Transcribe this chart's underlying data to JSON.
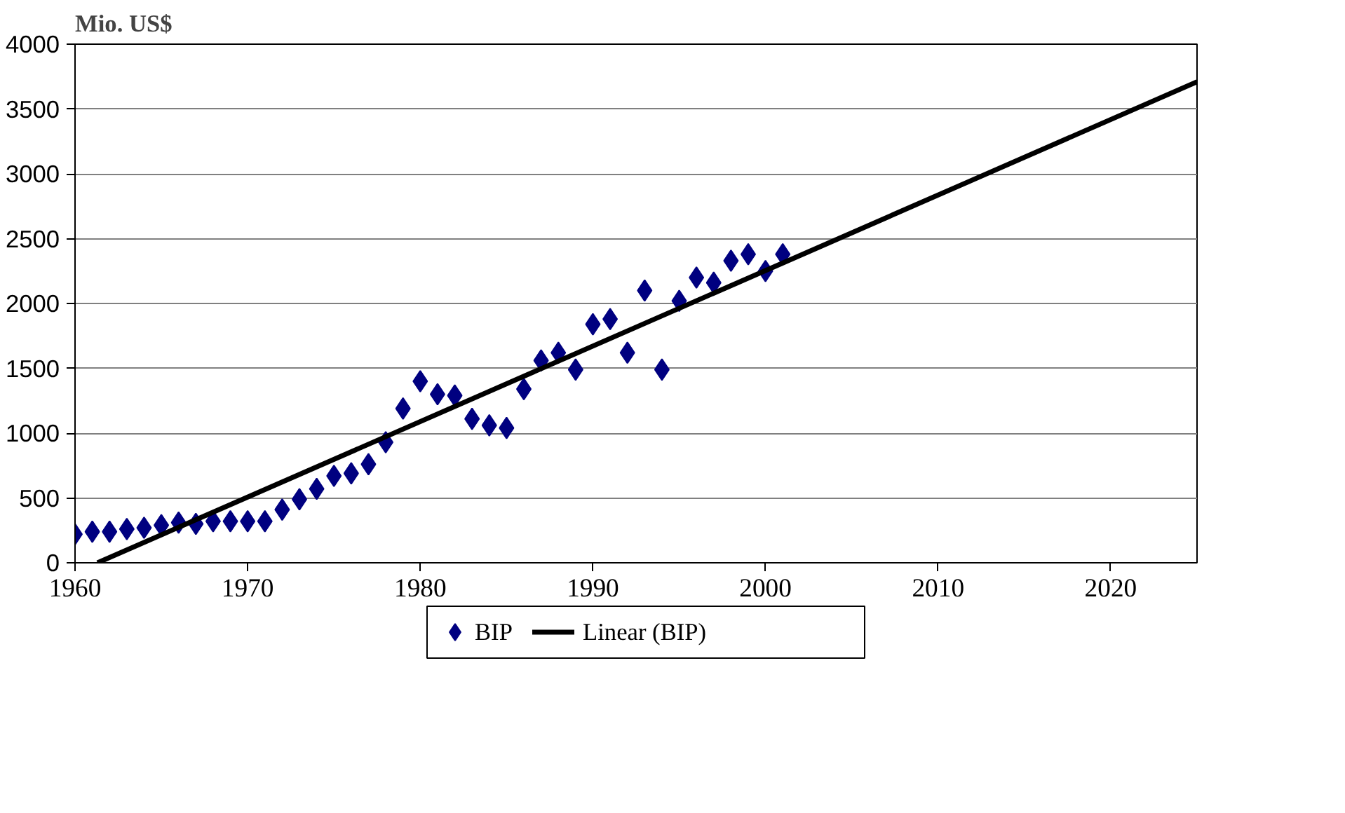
{
  "chart_data": {
    "type": "scatter",
    "ylabel": "Mio. US$",
    "xlim": [
      1960,
      2025
    ],
    "xticks": [
      1960,
      1970,
      1980,
      1990,
      2000,
      2010,
      2020
    ],
    "ylim": [
      0,
      4000
    ],
    "yticks": [
      0,
      500,
      1000,
      1500,
      2000,
      2500,
      3000,
      3500,
      4000
    ],
    "grid": "y",
    "legend": "bottom",
    "series": [
      {
        "name": "BIP",
        "color": "#000080",
        "marker": "diamond",
        "x": [
          1960,
          1961,
          1962,
          1963,
          1964,
          1965,
          1966,
          1967,
          1968,
          1969,
          1970,
          1971,
          1972,
          1973,
          1974,
          1975,
          1976,
          1977,
          1978,
          1979,
          1980,
          1981,
          1982,
          1983,
          1984,
          1985,
          1986,
          1987,
          1988,
          1989,
          1990,
          1991,
          1992,
          1993,
          1994,
          1995,
          1996,
          1997,
          1998,
          1999,
          2000,
          2001
        ],
        "values": [
          220,
          240,
          240,
          260,
          270,
          290,
          310,
          300,
          320,
          320,
          320,
          320,
          410,
          490,
          570,
          670,
          690,
          760,
          930,
          1190,
          1400,
          1300,
          1290,
          1110,
          1060,
          1040,
          1340,
          1560,
          1620,
          1490,
          1840,
          1880,
          1620,
          2100,
          1490,
          2020,
          2200,
          2160,
          2330,
          2380,
          2250,
          2380
        ]
      },
      {
        "name": "Linear (BIP)",
        "type": "line",
        "color": "#000000",
        "line_style": "solid",
        "x": [
          1961.3,
          2025
        ],
        "values": [
          0,
          3710
        ]
      }
    ]
  }
}
